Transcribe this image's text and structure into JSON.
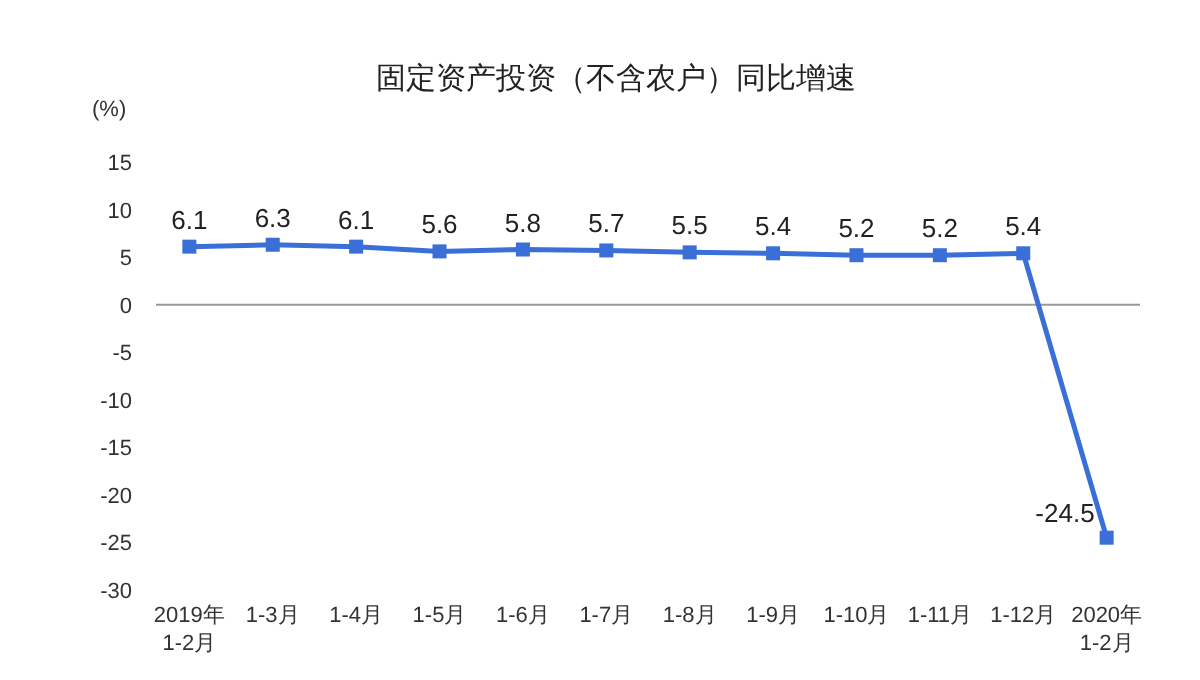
{
  "chart_data": {
    "type": "line",
    "title": "固定资产投资（不含农户）同比增速",
    "ylabel": "(%)",
    "categories": [
      "2019年\n1-2月",
      "1-3月",
      "1-4月",
      "1-5月",
      "1-6月",
      "1-7月",
      "1-8月",
      "1-9月",
      "1-10月",
      "1-11月",
      "1-12月",
      "2020年\n1-2月"
    ],
    "series": [
      {
        "color": "#3a6fd8",
        "values": [
          6.1,
          6.3,
          6.1,
          5.6,
          5.8,
          5.7,
          5.5,
          5.4,
          5.2,
          5.2,
          5.4,
          -24.5
        ]
      }
    ],
    "ylim": [
      -30,
      15
    ],
    "yticks": [
      -30,
      -25,
      -20,
      -15,
      -10,
      -5,
      0,
      5,
      10,
      15
    ],
    "marker": "square",
    "data_labels": true
  }
}
